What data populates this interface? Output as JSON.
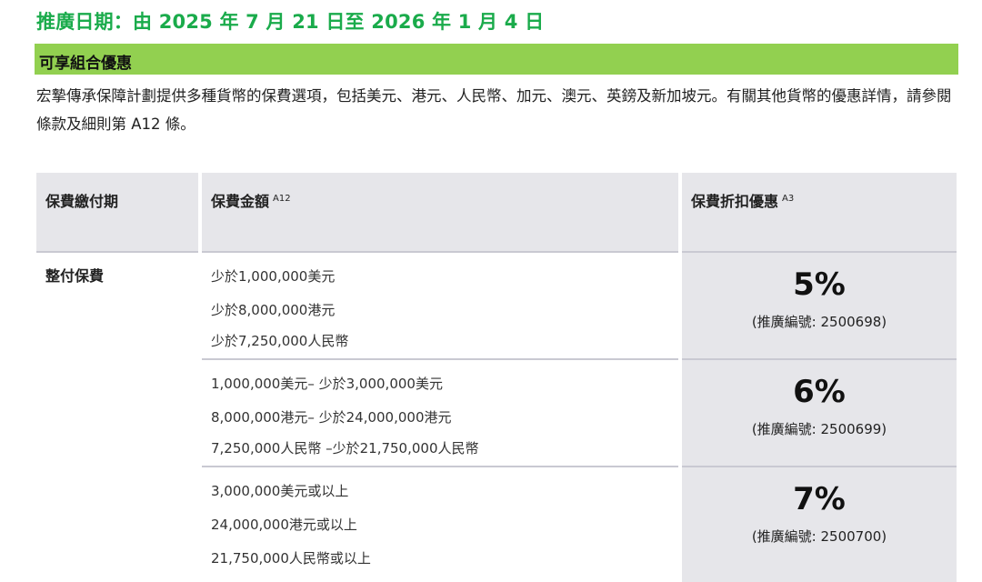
{
  "promo_period": "推廣日期：由 2025 年 7 月 21 日至 2026 年 1 月 4 日",
  "section_title": "可享組合優惠",
  "intro": "宏摯傳承保障計劃提供多種貨幣的保費選項，包括美元、港元、人民幣、加元、澳元、英鎊及新加坡元。有關其他貨幣的優惠詳情，請參閱條款及細則第 A12 條。",
  "colors": {
    "promo_text": "#1aab4b",
    "section_bar": "#92d050",
    "table_gray": "#e6e6ea"
  },
  "table": {
    "headers": [
      {
        "label": "保費繳付期",
        "sup": ""
      },
      {
        "label": "保費金額",
        "sup": "A12"
      },
      {
        "label": "保費折扣優惠",
        "sup": "A3"
      }
    ],
    "period": "整付保費",
    "rows": [
      {
        "amounts": [
          "少於1,000,000美元",
          "少於8,000,000港元",
          "少於7,250,000人民幣"
        ],
        "discount": "5%",
        "code": "(推廣編號: 2500698)"
      },
      {
        "amounts": [
          "1,000,000美元– 少於3,000,000美元",
          "8,000,000港元– 少於24,000,000港元",
          "7,250,000人民幣 –少於21,750,000人民幣"
        ],
        "discount": "6%",
        "code": "(推廣編號: 2500699)"
      },
      {
        "amounts": [
          "3,000,000美元或以上",
          "24,000,000港元或以上",
          "21,750,000人民幣或以上"
        ],
        "discount": "7%",
        "code": "(推廣編號: 2500700)"
      }
    ]
  }
}
